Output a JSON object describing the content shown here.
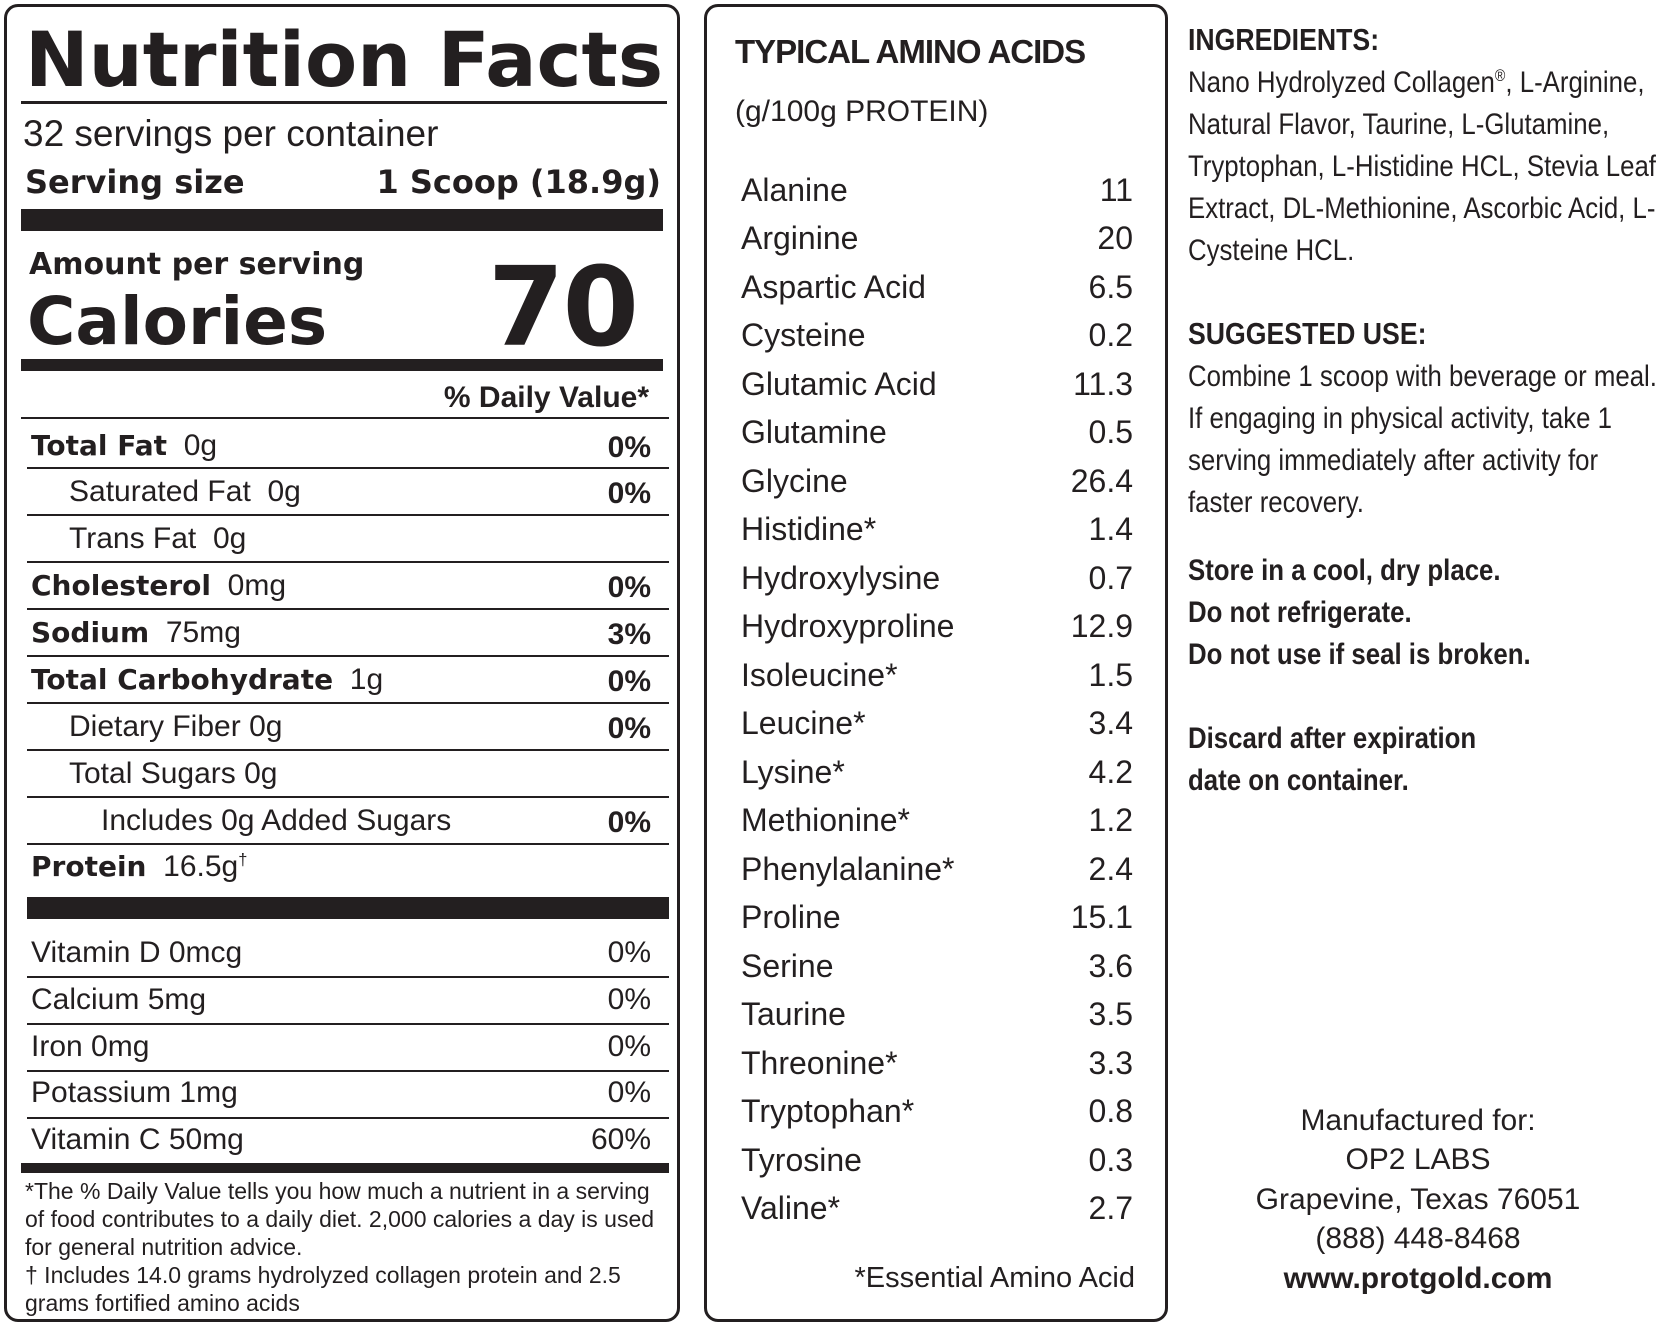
{
  "nutrition_facts": {
    "title": "Nutrition Facts",
    "servings_per_container": "32 servings per container",
    "serving_size_label": "Serving size",
    "serving_size_value": "1 Scoop (18.9g)",
    "amount_per_serving": "Amount per serving",
    "calories_label": "Calories",
    "calories_value": "70",
    "daily_value_header": "% Daily Value*",
    "nutrients": [
      {
        "name": "Total Fat",
        "amount": "0g",
        "dv": "0%"
      },
      {
        "name": "Saturated Fat",
        "amount": "0g",
        "dv": "0%"
      },
      {
        "name": "Trans Fat",
        "amount": "0g",
        "dv": ""
      },
      {
        "name": "Cholesterol",
        "amount": "0mg",
        "dv": "0%"
      },
      {
        "name": "Sodium",
        "amount": "75mg",
        "dv": "3%"
      },
      {
        "name": "Total Carbohydrate",
        "amount": "1g",
        "dv": "0%"
      },
      {
        "name": "Dietary Fiber",
        "amount": "0g",
        "dv": "0%"
      },
      {
        "name": "Total Sugars",
        "amount": "0g",
        "dv": ""
      },
      {
        "name": "Includes 0g Added Sugars",
        "amount": "",
        "dv": "0%"
      },
      {
        "name": "Protein",
        "amount": "16.5g",
        "mark": "†",
        "dv": ""
      }
    ],
    "vitamins": [
      {
        "label": "Vitamin D 0mcg",
        "dv": "0%"
      },
      {
        "label": "Calcium 5mg",
        "dv": "0%"
      },
      {
        "label": "Iron 0mg",
        "dv": "0%"
      },
      {
        "label": "Potassium 1mg",
        "dv": "0%"
      },
      {
        "label": "Vitamin C 50mg",
        "dv": "60%"
      }
    ],
    "footnote_dv": "*The % Daily Value tells you how much a nutrient in a serving of food contributes to a daily diet. 2,000 calories a day is used for general nutrition advice.",
    "footnote_protein": "† Includes 14.0 grams hydrolyzed collagen protein and 2.5 grams fortified amino acids"
  },
  "amino_acids": {
    "title": "TYPICAL AMINO ACIDS",
    "subtitle": "(g/100g PROTEIN)",
    "items": [
      {
        "name": "Alanine",
        "value": "11"
      },
      {
        "name": "Arginine",
        "value": "20"
      },
      {
        "name": "Aspartic Acid",
        "value": "6.5"
      },
      {
        "name": "Cysteine",
        "value": "0.2"
      },
      {
        "name": "Glutamic Acid",
        "value": "11.3"
      },
      {
        "name": "Glutamine",
        "value": "0.5"
      },
      {
        "name": "Glycine",
        "value": "26.4"
      },
      {
        "name": "Histidine*",
        "value": "1.4"
      },
      {
        "name": "Hydroxylysine",
        "value": "0.7"
      },
      {
        "name": "Hydroxyproline",
        "value": "12.9"
      },
      {
        "name": "Isoleucine*",
        "value": "1.5"
      },
      {
        "name": "Leucine*",
        "value": "3.4"
      },
      {
        "name": "Lysine*",
        "value": "4.2"
      },
      {
        "name": "Methionine*",
        "value": "1.2"
      },
      {
        "name": "Phenylalanine*",
        "value": "2.4"
      },
      {
        "name": "Proline",
        "value": "15.1"
      },
      {
        "name": "Serine",
        "value": "3.6"
      },
      {
        "name": "Taurine",
        "value": "3.5"
      },
      {
        "name": "Threonine*",
        "value": "3.3"
      },
      {
        "name": "Tryptophan*",
        "value": "0.8"
      },
      {
        "name": "Tyrosine",
        "value": "0.3"
      },
      {
        "name": "Valine*",
        "value": "2.7"
      }
    ],
    "note": "*Essential Amino Acid"
  },
  "ingredients": {
    "heading": "INGREDIENTS:",
    "text_start": "Nano Hydrolyzed Collagen",
    "registered_mark": "®",
    "text_rest": ", L-Arginine, Natural Flavor, Taurine, L-Glutamine, Tryptophan, L-Histidine HCL, Stevia Leaf Extract, DL-Methionine, Ascorbic Acid, L-Cysteine HCL."
  },
  "suggested_use": {
    "heading": "SUGGESTED USE:",
    "line1": "Combine 1 scoop with beverage or meal.",
    "line2": "If engaging in physical activity, take 1 serving immediately after activity for faster recovery."
  },
  "storage": [
    "Store in a cool, dry place.",
    "Do not refrigerate.",
    "Do not use if seal is broken."
  ],
  "discard": [
    "Discard after expiration",
    "date on container."
  ],
  "manufacturer": {
    "label": "Manufactured for:",
    "name": "OP2 LABS",
    "address": "Grapevine, Texas 76051",
    "phone": "(888) 448-8468",
    "website": "www.protgold.com"
  }
}
